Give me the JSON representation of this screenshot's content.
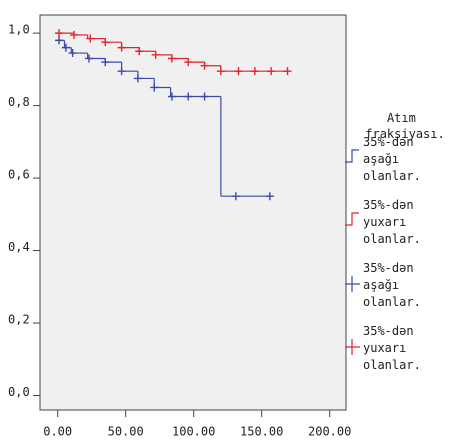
{
  "chart_data": {
    "type": "survival",
    "xlim": [
      -13,
      212
    ],
    "ylim": [
      -0.04,
      1.05
    ],
    "xticks": [
      {
        "value": 0,
        "label": "0.00"
      },
      {
        "value": 50,
        "label": "50.00"
      },
      {
        "value": 100,
        "label": "100.00"
      },
      {
        "value": 150,
        "label": "150.00"
      },
      {
        "value": 200,
        "label": "200.00"
      }
    ],
    "yticks": [
      {
        "value": 0,
        "label": "0,0"
      },
      {
        "value": 0.2,
        "label": "0,2"
      },
      {
        "value": 0.4,
        "label": "0,4"
      },
      {
        "value": 0.6,
        "label": "0,6"
      },
      {
        "value": 0.8,
        "label": "0,8"
      },
      {
        "value": 1.0,
        "label": "1,0"
      }
    ],
    "legend_title": "Atım fraksiyası.",
    "series": [
      {
        "name": "35%-dən aşağı olanlar.",
        "censored_name": "35%-dən aşağı olanlar.",
        "color": "#3a4aa8",
        "x": [
          0,
          5,
          10,
          22,
          35,
          47,
          59,
          71,
          83,
          120,
          156
        ],
        "values": [
          0.98,
          0.96,
          0.945,
          0.93,
          0.92,
          0.895,
          0.875,
          0.85,
          0.825,
          0.55,
          0.55
        ],
        "censored_x": [
          1,
          6,
          11,
          23,
          35,
          47,
          59,
          71,
          84,
          96,
          108,
          131,
          156
        ],
        "censored_values": [
          0.98,
          0.96,
          0.945,
          0.93,
          0.92,
          0.895,
          0.875,
          0.85,
          0.825,
          0.825,
          0.825,
          0.55,
          0.55
        ]
      },
      {
        "name": "35%-dən yuxarı olanlar.",
        "censored_name": "35%-dən yuxarı olanlar.",
        "color": "#e5222a",
        "x": [
          0,
          12,
          22,
          35,
          47,
          60,
          72,
          84,
          96,
          108,
          120,
          169
        ],
        "values": [
          1.0,
          0.995,
          0.985,
          0.975,
          0.96,
          0.95,
          0.94,
          0.93,
          0.92,
          0.91,
          0.895,
          0.895
        ],
        "censored_x": [
          1,
          12,
          24,
          35,
          47,
          60,
          72,
          84,
          96,
          108,
          120,
          133,
          145,
          157,
          169
        ],
        "censored_values": [
          1.0,
          0.995,
          0.985,
          0.975,
          0.96,
          0.95,
          0.94,
          0.93,
          0.92,
          0.91,
          0.895,
          0.895,
          0.895,
          0.895,
          0.895
        ]
      }
    ]
  }
}
